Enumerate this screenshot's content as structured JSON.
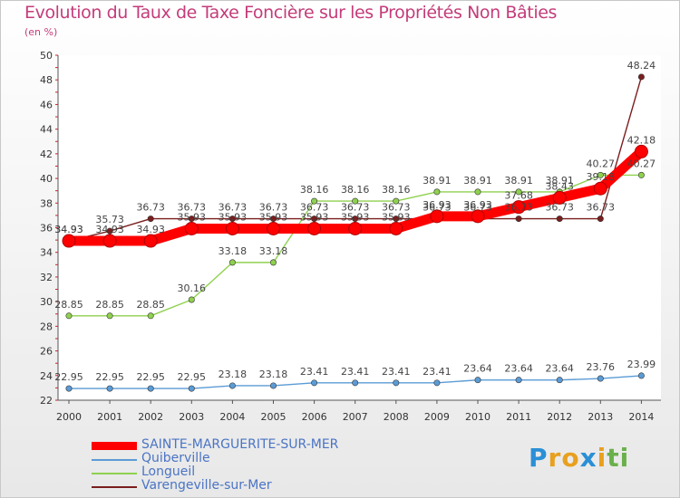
{
  "chart_data": {
    "type": "line",
    "title": "Evolution du Taux de Taxe Foncière sur les Propriétés Non Bâties",
    "subtitle": "(en %)",
    "xlabel": "",
    "ylabel": "",
    "x": [
      "2000",
      "2001",
      "2002",
      "2003",
      "2004",
      "2005",
      "2006",
      "2007",
      "2008",
      "2009",
      "2010",
      "2011",
      "2012",
      "2013",
      "2014"
    ],
    "ylim": [
      22,
      50
    ],
    "yticks": [
      22,
      24,
      26,
      28,
      30,
      32,
      34,
      36,
      38,
      40,
      42,
      44,
      46,
      48,
      50
    ],
    "grid": false,
    "legend_position": "bottom-left",
    "series": [
      {
        "name": "SAINTE-MARGUERITE-SUR-MER",
        "color": "#ff0000",
        "values": [
          34.93,
          34.93,
          34.93,
          35.93,
          35.93,
          35.93,
          35.93,
          35.93,
          35.93,
          36.93,
          36.93,
          37.68,
          38.43,
          39.18,
          42.18
        ],
        "labels": [
          "34.93",
          "34.93",
          "34.93",
          "35.93",
          "35.93",
          "35.93",
          "35.93",
          "35.93",
          "35.93",
          "36.93",
          "36.93",
          "37.68",
          "38.43",
          "39.18",
          "42.18"
        ]
      },
      {
        "name": "Quiberville",
        "color": "#5b9bd5",
        "values": [
          22.95,
          22.95,
          22.95,
          22.95,
          23.18,
          23.18,
          23.41,
          23.41,
          23.41,
          23.41,
          23.64,
          23.64,
          23.64,
          23.76,
          23.99
        ],
        "labels": [
          "22.95",
          "22.95",
          "22.95",
          "22.95",
          "23.18",
          "23.18",
          "23.41",
          "23.41",
          "23.41",
          "23.41",
          "23.64",
          "23.64",
          "23.64",
          "23.76",
          "23.99"
        ]
      },
      {
        "name": "Longueil",
        "color": "#8fd14f",
        "values": [
          28.85,
          28.85,
          28.85,
          30.16,
          33.18,
          33.18,
          38.16,
          38.16,
          38.16,
          38.91,
          38.91,
          38.91,
          38.91,
          40.27,
          40.27
        ],
        "labels": [
          "28.85",
          "28.85",
          "28.85",
          "30.16",
          "33.18",
          "33.18",
          "38.16",
          "38.16",
          "38.16",
          "38.91",
          "38.91",
          "38.91",
          "38.91",
          "40.27",
          "40.27"
        ]
      },
      {
        "name": "Varengeville-sur-Mer",
        "color": "#7a1e1e",
        "values": [
          34.93,
          35.73,
          36.73,
          36.73,
          36.73,
          36.73,
          36.73,
          36.73,
          36.73,
          36.73,
          36.73,
          36.73,
          36.73,
          36.73,
          48.24
        ],
        "labels": [
          "34.93",
          "35.73",
          "36.73",
          "36.73",
          "36.73",
          "36.73",
          "36.73",
          "36.73",
          "36.73",
          "36.73",
          "36.73",
          "36.73",
          "36.73",
          "36.73",
          "48.24"
        ]
      }
    ]
  },
  "logo": {
    "letters": [
      "P",
      "r",
      "o",
      "x",
      "i",
      "t",
      "i"
    ],
    "colors": [
      "#2a8fd6",
      "#e8a01e",
      "#e8a01e",
      "#2a8fd6",
      "#e8a01e",
      "#6ab04c",
      "#6ab04c"
    ]
  }
}
